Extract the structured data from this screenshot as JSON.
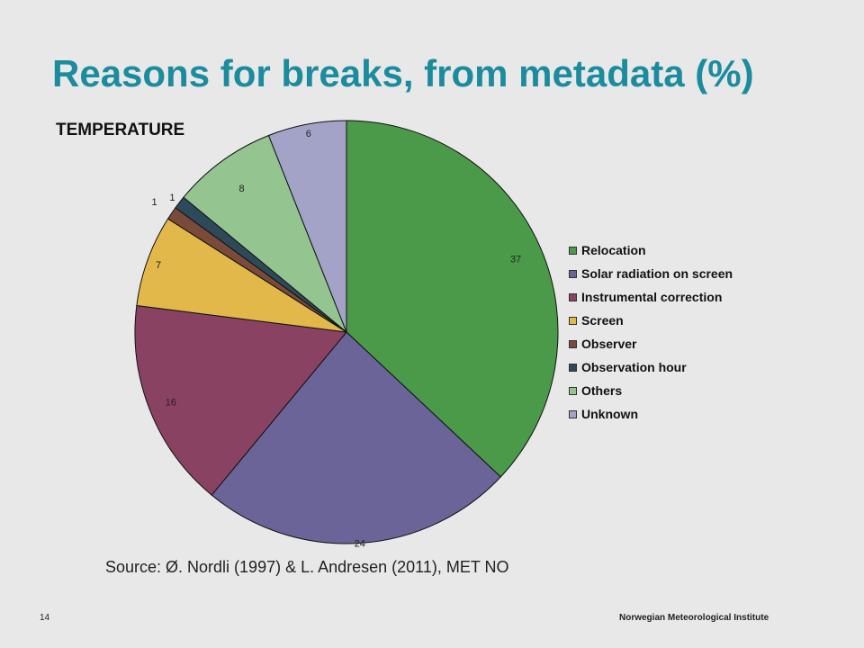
{
  "slide": {
    "title": "Reasons for breaks, from metadata (%)",
    "source": "Source: Ø. Nordli (1997) & L. Andresen (2011), MET NO",
    "page_number": "14",
    "organization": "Norwegian Meteorological Institute"
  },
  "chart_data": {
    "type": "pie",
    "title": "TEMPERATURE",
    "legend_position": "right",
    "slices": [
      {
        "label": "Relocation",
        "value": 37,
        "color": "#4a9a4a"
      },
      {
        "label": "Solar radiation on screen",
        "value": 24,
        "color": "#6a6499"
      },
      {
        "label": "Instrumental correction",
        "value": 16,
        "color": "#8a4262"
      },
      {
        "label": "Screen",
        "value": 7,
        "color": "#e2b84a"
      },
      {
        "label": "Observer",
        "value": 1,
        "color": "#7a4a3a"
      },
      {
        "label": "Observation hour",
        "value": 1,
        "color": "#2e4a5a"
      },
      {
        "label": "Others",
        "value": 8,
        "color": "#94c490"
      },
      {
        "label": "Unknown",
        "value": 6,
        "color": "#a3a3c8"
      }
    ]
  }
}
